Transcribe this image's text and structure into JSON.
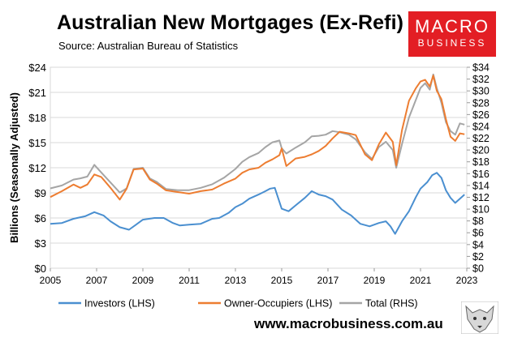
{
  "header": {
    "title": "Australian New Mortgages (Ex-Refi)",
    "subtitle": "Source: Australian Bureau of Statistics"
  },
  "logo": {
    "line1": "MACRO",
    "line2": "BUSINESS"
  },
  "footer": {
    "url": "www.macrobusiness.com.au"
  },
  "colors": {
    "investors": "#4a8fd0",
    "owner_occupiers": "#ed7d31",
    "total": "#a5a5a5",
    "brand": "#e31e24"
  },
  "chart_data": {
    "type": "line",
    "title": "Australian New Mortgages (Ex-Refi)",
    "ylabel": "Billions (Seasonally Adjusted)",
    "ylim_left": [
      0,
      24
    ],
    "ylim_right": [
      0,
      34
    ],
    "left_ticks": [
      "$0",
      "$3",
      "$6",
      "$9",
      "$12",
      "$15",
      "$18",
      "$21",
      "$24"
    ],
    "right_ticks": [
      "$0",
      "$2",
      "$4",
      "$6",
      "$8",
      "$10",
      "$12",
      "$14",
      "$16",
      "$18",
      "$20",
      "$22",
      "$24",
      "$26",
      "$28",
      "$30",
      "$32",
      "$34"
    ],
    "x_ticks": [
      "2005",
      "2007",
      "2009",
      "2011",
      "2013",
      "2015",
      "2017",
      "2019",
      "2021",
      "2023"
    ],
    "xlim": [
      2005,
      2023
    ],
    "grid": "horizontal",
    "series": [
      {
        "name": "Investors (LHS)",
        "axis": "left",
        "x": [
          2005,
          2005.5,
          2006,
          2006.5,
          2006.9,
          2007.3,
          2007.6,
          2008,
          2008.4,
          2008.7,
          2009,
          2009.5,
          2009.9,
          2010.3,
          2010.6,
          2011,
          2011.5,
          2012,
          2012.3,
          2012.7,
          2013,
          2013.3,
          2013.6,
          2014,
          2014.3,
          2014.5,
          2014.7,
          2015,
          2015.3,
          2015.6,
          2016,
          2016.3,
          2016.6,
          2016.9,
          2017.2,
          2017.6,
          2018,
          2018.4,
          2018.8,
          2019.2,
          2019.5,
          2019.7,
          2019.9,
          2020.2,
          2020.5,
          2020.8,
          2021,
          2021.3,
          2021.5,
          2021.7,
          2021.9,
          2022.1,
          2022.3,
          2022.5,
          2022.7,
          2022.9
        ],
        "values": [
          5.3,
          5.4,
          5.9,
          6.2,
          6.7,
          6.3,
          5.6,
          4.9,
          4.6,
          5.2,
          5.8,
          6.0,
          6.0,
          5.4,
          5.1,
          5.2,
          5.3,
          5.9,
          6.0,
          6.6,
          7.3,
          7.7,
          8.3,
          8.8,
          9.2,
          9.5,
          9.6,
          7.1,
          6.8,
          7.5,
          8.4,
          9.2,
          8.8,
          8.6,
          8.2,
          7.0,
          6.3,
          5.3,
          5.0,
          5.4,
          5.6,
          5.0,
          4.1,
          5.6,
          6.8,
          8.5,
          9.5,
          10.3,
          11.1,
          11.4,
          10.8,
          9.3,
          8.4,
          7.8,
          8.3,
          8.8
        ]
      },
      {
        "name": "Owner-Occupiers (LHS)",
        "axis": "left",
        "x": [
          2005,
          2005.5,
          2006,
          2006.3,
          2006.6,
          2006.9,
          2007.2,
          2007.6,
          2008,
          2008.3,
          2008.6,
          2009,
          2009.3,
          2009.6,
          2010,
          2010.5,
          2011,
          2011.5,
          2012,
          2012.5,
          2013,
          2013.3,
          2013.6,
          2014,
          2014.3,
          2014.6,
          2014.9,
          2015,
          2015.2,
          2015.6,
          2016,
          2016.3,
          2016.6,
          2016.9,
          2017.2,
          2017.5,
          2017.9,
          2018.2,
          2018.6,
          2018.9,
          2019.2,
          2019.5,
          2019.8,
          2019.95,
          2020.2,
          2020.5,
          2020.8,
          2021,
          2021.2,
          2021.4,
          2021.55,
          2021.7,
          2021.9,
          2022.1,
          2022.3,
          2022.5,
          2022.7,
          2022.9
        ],
        "values": [
          8.5,
          9.2,
          10.0,
          9.6,
          10.0,
          11.2,
          10.9,
          9.6,
          8.2,
          9.5,
          11.8,
          11.9,
          10.6,
          10.1,
          9.3,
          9.1,
          8.9,
          9.2,
          9.4,
          10.1,
          10.7,
          11.4,
          11.8,
          12.0,
          12.6,
          13.0,
          13.5,
          14.3,
          12.2,
          13.1,
          13.3,
          13.6,
          14.0,
          14.6,
          15.5,
          16.3,
          16.1,
          15.9,
          13.6,
          12.9,
          14.8,
          16.2,
          15.1,
          12.3,
          16.5,
          20.0,
          21.5,
          22.3,
          22.5,
          21.7,
          23.0,
          21.2,
          20.2,
          17.8,
          15.7,
          15.2,
          16.1,
          16.0
        ]
      },
      {
        "name": "Total (RHS)",
        "axis": "right",
        "x": [
          2005,
          2005.5,
          2006,
          2006.3,
          2006.6,
          2006.9,
          2007.2,
          2007.6,
          2008,
          2008.3,
          2008.6,
          2009,
          2009.3,
          2009.6,
          2010,
          2010.5,
          2011,
          2011.5,
          2012,
          2012.5,
          2013,
          2013.3,
          2013.6,
          2014,
          2014.3,
          2014.6,
          2014.9,
          2015,
          2015.2,
          2015.6,
          2016,
          2016.3,
          2016.6,
          2016.9,
          2017.2,
          2017.5,
          2017.9,
          2018.2,
          2018.6,
          2018.9,
          2019.2,
          2019.5,
          2019.8,
          2019.95,
          2020.2,
          2020.5,
          2020.8,
          2021,
          2021.2,
          2021.4,
          2021.55,
          2021.7,
          2021.9,
          2022.1,
          2022.3,
          2022.5,
          2022.7,
          2022.9
        ],
        "values": [
          13.5,
          14.0,
          15.0,
          15.2,
          15.5,
          17.5,
          16.2,
          14.5,
          12.8,
          13.5,
          16.8,
          17.0,
          15.2,
          14.6,
          13.4,
          13.2,
          13.2,
          13.6,
          14.2,
          15.3,
          16.8,
          18.0,
          18.8,
          19.5,
          20.5,
          21.3,
          21.6,
          20.3,
          19.4,
          20.4,
          21.3,
          22.3,
          22.4,
          22.6,
          23.2,
          23.0,
          22.6,
          21.8,
          19.6,
          18.5,
          20.5,
          21.4,
          20.0,
          17.0,
          21.0,
          25.5,
          28.5,
          30.5,
          31.3,
          30.2,
          32.8,
          30.5,
          28.0,
          24.7,
          23.2,
          22.6,
          24.5,
          24.3
        ]
      }
    ]
  }
}
